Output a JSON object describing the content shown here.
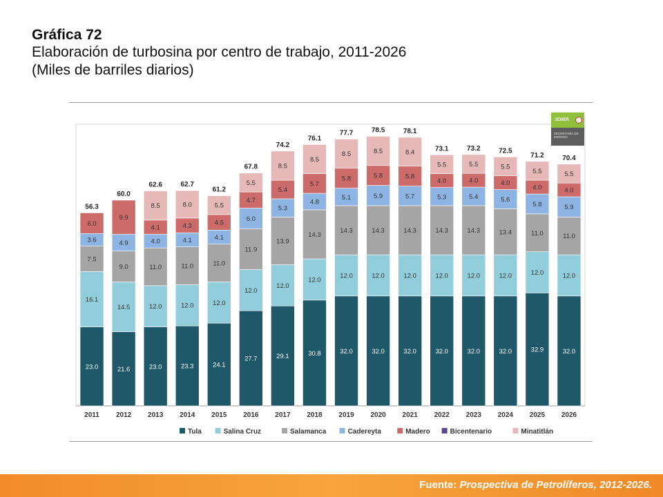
{
  "header": {
    "chart_number": "Gráfica 72",
    "title": "Elaboración de turbosina por centro de trabajo, 2011-2026",
    "units": "(Miles de barriles diarios)"
  },
  "logo": {
    "name": "SENER",
    "subtitle": "SECRETARÍA DE ENERGÍA"
  },
  "footer": {
    "label": "Fuente:",
    "source": "Prospectiva de Petrolíferos, 2012-2026."
  },
  "colors": {
    "Tula": "#1f5868",
    "Salina Cruz": "#92cddc",
    "Salamanca": "#a5a5a5",
    "Cadereyta": "#8db4e2",
    "Madero": "#cd6a6a",
    "Bicentenario": "#5f4a8b",
    "Minatitlán": "#e6b9b8",
    "footer_bar": "#f28c28"
  },
  "chart_data": {
    "type": "bar",
    "stacked": true,
    "title": "Elaboración de turbosina por centro de trabajo, 2011-2026",
    "ylabel": "Miles de barriles diarios",
    "xlabel": "",
    "ylim": [
      0,
      80
    ],
    "grid": false,
    "legend_position": "bottom",
    "categories": [
      "2011",
      "2012",
      "2013",
      "2014",
      "2015",
      "2016",
      "2017",
      "2018",
      "2019",
      "2020",
      "2021",
      "2022",
      "2023",
      "2024",
      "2025",
      "2026"
    ],
    "totals": [
      "56.3",
      "60.0",
      "62.6",
      "62.7",
      "61.2",
      "67.8",
      "74.2",
      "76.1",
      "77.7",
      "78.5",
      "78.1",
      "73.1",
      "73.2",
      "72.5",
      "71.2",
      "70.4"
    ],
    "series": [
      {
        "name": "Tula",
        "values": [
          23.0,
          21.6,
          23.0,
          23.3,
          24.1,
          27.7,
          29.1,
          30.8,
          32.0,
          32.0,
          32.0,
          32.0,
          32.0,
          32.0,
          32.9,
          32.0
        ]
      },
      {
        "name": "Salina Cruz",
        "values": [
          16.1,
          14.5,
          12.0,
          12.0,
          12.0,
          12.0,
          12.0,
          12.0,
          12.0,
          12.0,
          12.0,
          12.0,
          12.0,
          12.0,
          12.0,
          12.0
        ]
      },
      {
        "name": "Salamanca",
        "values": [
          7.5,
          9.0,
          11.0,
          11.0,
          11.0,
          11.9,
          13.9,
          14.3,
          14.3,
          14.3,
          14.3,
          14.3,
          14.3,
          13.4,
          11.0,
          11.0
        ]
      },
      {
        "name": "Cadereyta",
        "values": [
          3.6,
          4.9,
          4.0,
          4.1,
          4.1,
          6.0,
          5.3,
          4.8,
          5.1,
          5.9,
          5.7,
          5.3,
          5.4,
          5.6,
          5.8,
          5.9
        ]
      },
      {
        "name": "Madero",
        "values": [
          6.0,
          9.9,
          4.1,
          4.3,
          4.5,
          4.7,
          5.4,
          5.7,
          5.8,
          5.8,
          5.8,
          4.0,
          4.0,
          4.0,
          4.0,
          4.0
        ]
      },
      {
        "name": "Bicentenario",
        "values": [
          0,
          0,
          0,
          0,
          0,
          0,
          0,
          0,
          0,
          0,
          0,
          0,
          0,
          0,
          0,
          0
        ]
      },
      {
        "name": "Minatitlán",
        "values": [
          0,
          0,
          8.5,
          8.0,
          5.5,
          5.5,
          8.5,
          8.5,
          8.5,
          8.5,
          8.4,
          5.5,
          5.5,
          5.5,
          5.5,
          5.5
        ]
      }
    ]
  }
}
